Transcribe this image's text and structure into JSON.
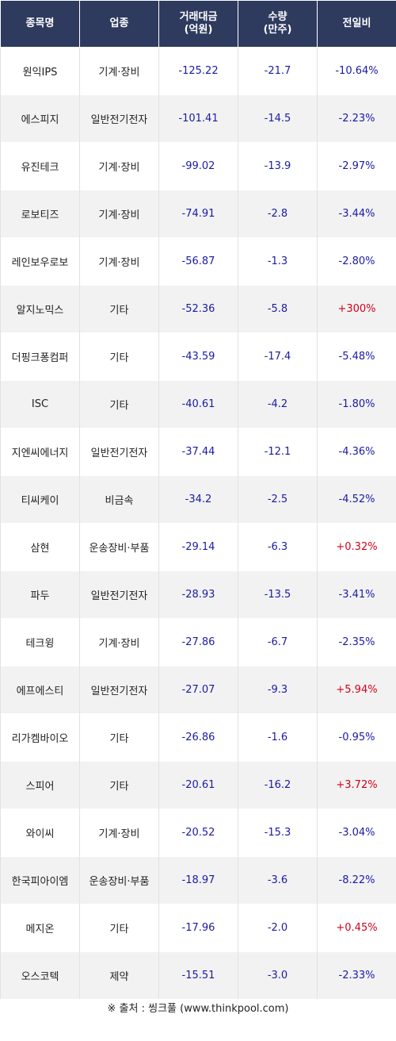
{
  "header": {
    "col_name": "종목명",
    "col_sector": "업종",
    "col_amount_line1": "거래대금",
    "col_amount_line2": "(억원)",
    "col_volume_line1": "수량",
    "col_volume_line2": "(만주)",
    "col_change": "전일비"
  },
  "rows": [
    {
      "name": "원익IPS",
      "sector": "기계·장비",
      "amount": "-125.22",
      "volume": "-21.7",
      "change": "-10.64%"
    },
    {
      "name": "에스피지",
      "sector": "일반전기전자",
      "amount": "-101.41",
      "volume": "-14.5",
      "change": "-2.23%"
    },
    {
      "name": "유진테크",
      "sector": "기계·장비",
      "amount": "-99.02",
      "volume": "-13.9",
      "change": "-2.97%"
    },
    {
      "name": "로보티즈",
      "sector": "기계·장비",
      "amount": "-74.91",
      "volume": "-2.8",
      "change": "-3.44%"
    },
    {
      "name": "레인보우로보",
      "sector": "기계·장비",
      "amount": "-56.87",
      "volume": "-1.3",
      "change": "-2.80%"
    },
    {
      "name": "알지노믹스",
      "sector": "기타",
      "amount": "-52.36",
      "volume": "-5.8",
      "change": "+300%"
    },
    {
      "name": "더핑크퐁컴퍼",
      "sector": "기타",
      "amount": "-43.59",
      "volume": "-17.4",
      "change": "-5.48%"
    },
    {
      "name": "ISC",
      "sector": "기타",
      "amount": "-40.61",
      "volume": "-4.2",
      "change": "-1.80%"
    },
    {
      "name": "지엔씨에너지",
      "sector": "일반전기전자",
      "amount": "-37.44",
      "volume": "-12.1",
      "change": "-4.36%"
    },
    {
      "name": "티씨케이",
      "sector": "비금속",
      "amount": "-34.2",
      "volume": "-2.5",
      "change": "-4.52%"
    },
    {
      "name": "삼현",
      "sector": "운송장비·부품",
      "amount": "-29.14",
      "volume": "-6.3",
      "change": "+0.32%"
    },
    {
      "name": "파두",
      "sector": "일반전기전자",
      "amount": "-28.93",
      "volume": "-13.5",
      "change": "-3.41%"
    },
    {
      "name": "테크윙",
      "sector": "기계·장비",
      "amount": "-27.86",
      "volume": "-6.7",
      "change": "-2.35%"
    },
    {
      "name": "에프에스티",
      "sector": "일반전기전자",
      "amount": "-27.07",
      "volume": "-9.3",
      "change": "+5.94%"
    },
    {
      "name": "리가켐바이오",
      "sector": "기타",
      "amount": "-26.86",
      "volume": "-1.6",
      "change": "-0.95%"
    },
    {
      "name": "스피어",
      "sector": "기타",
      "amount": "-20.61",
      "volume": "-16.2",
      "change": "+3.72%"
    },
    {
      "name": "와이씨",
      "sector": "기계·장비",
      "amount": "-20.52",
      "volume": "-15.3",
      "change": "-3.04%"
    },
    {
      "name": "한국피아이엠",
      "sector": "운송장비·부품",
      "amount": "-18.97",
      "volume": "-3.6",
      "change": "-8.22%"
    },
    {
      "name": "메지온",
      "sector": "기타",
      "amount": "-17.96",
      "volume": "-2.0",
      "change": "+0.45%"
    },
    {
      "name": "오스코텍",
      "sector": "제약",
      "amount": "-15.51",
      "volume": "-3.0",
      "change": "-2.33%"
    }
  ],
  "source": "※ 출처 : 씽크풀 (www.thinkpool.com)",
  "colors": {
    "header_bg": "#2e3a5e",
    "negative": "#1a1aa6",
    "positive": "#d0021b"
  }
}
